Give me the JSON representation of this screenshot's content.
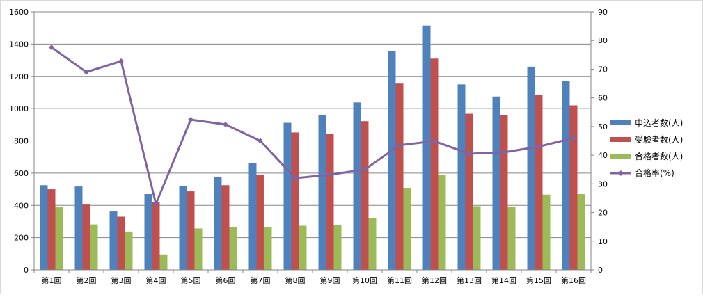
{
  "chart_data": {
    "type": "bar",
    "title": "",
    "xlabel": "",
    "ylabel": "",
    "categories": [
      "第1回",
      "第2回",
      "第3回",
      "第4回",
      "第5回",
      "第6回",
      "第7回",
      "第8回",
      "第9回",
      "第10回",
      "第11回",
      "第12回",
      "第13回",
      "第14回",
      "第15回",
      "第16回"
    ],
    "ylim": [
      0,
      1600
    ],
    "y_ticks": [
      0,
      200,
      400,
      600,
      800,
      1000,
      1200,
      1400,
      1600
    ],
    "y2lim": [
      0,
      90
    ],
    "y2_ticks": [
      0,
      10,
      20,
      30,
      40,
      50,
      60,
      70,
      80,
      90
    ],
    "grid": true,
    "legend_position": "right",
    "series": [
      {
        "name": "申込者数(人)",
        "type": "bar",
        "axis": "left",
        "color": "#4f81bd",
        "values": [
          525,
          517,
          362,
          470,
          522,
          578,
          662,
          912,
          960,
          1038,
          1355,
          1515,
          1150,
          1075,
          1260,
          1170
        ]
      },
      {
        "name": "受験者数(人)",
        "type": "bar",
        "axis": "left",
        "color": "#c0504d",
        "values": [
          500,
          405,
          330,
          420,
          487,
          525,
          590,
          852,
          843,
          922,
          1155,
          1310,
          968,
          958,
          1085,
          1020
        ]
      },
      {
        "name": "合格者数(人)",
        "type": "bar",
        "axis": "left",
        "color": "#9bbb59",
        "values": [
          388,
          282,
          238,
          96,
          257,
          264,
          266,
          274,
          278,
          323,
          505,
          588,
          395,
          390,
          467,
          470
        ]
      },
      {
        "name": "合格率(%)",
        "type": "line",
        "axis": "right",
        "color": "#8064a2",
        "values": [
          77.6,
          69.0,
          72.8,
          23.0,
          52.4,
          50.7,
          45.0,
          32.0,
          33.2,
          35.0,
          43.5,
          44.9,
          40.5,
          41.0,
          43.0,
          46.0
        ]
      }
    ]
  }
}
